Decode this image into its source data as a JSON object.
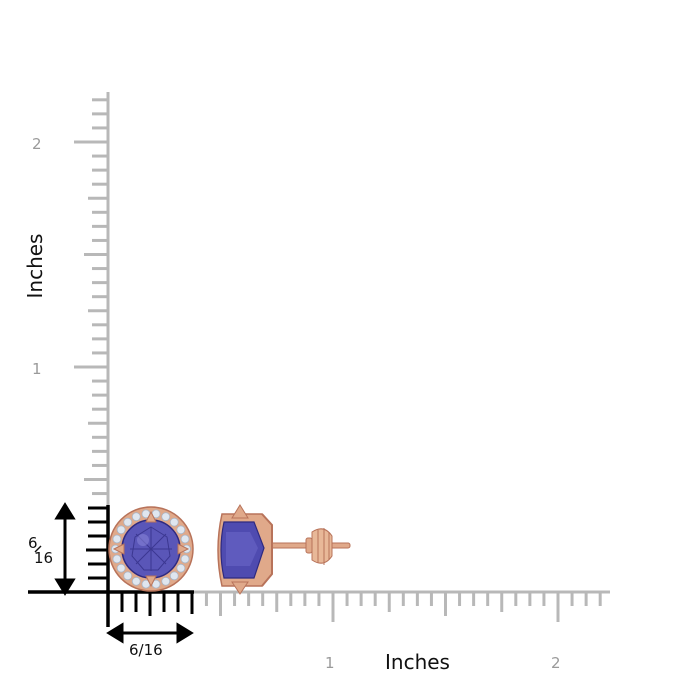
{
  "axes": {
    "x_title": "Inches",
    "y_title": "Inches",
    "x_tick_labels": [
      "1",
      "2"
    ],
    "y_tick_labels": [
      "2",
      "1"
    ]
  },
  "dimensions": {
    "width_label": "6/16",
    "height_label_numerator": "6",
    "height_label_denominator": "16"
  },
  "colors": {
    "ruler_gray": "#b8b8b8",
    "axis_black": "#000000",
    "gold": "#e0a98a",
    "gold_dark": "#b8735a",
    "tanzanite": "#5a56b8",
    "tanzanite_dark": "#2e2a80",
    "diamond": "#dfe6ef"
  }
}
